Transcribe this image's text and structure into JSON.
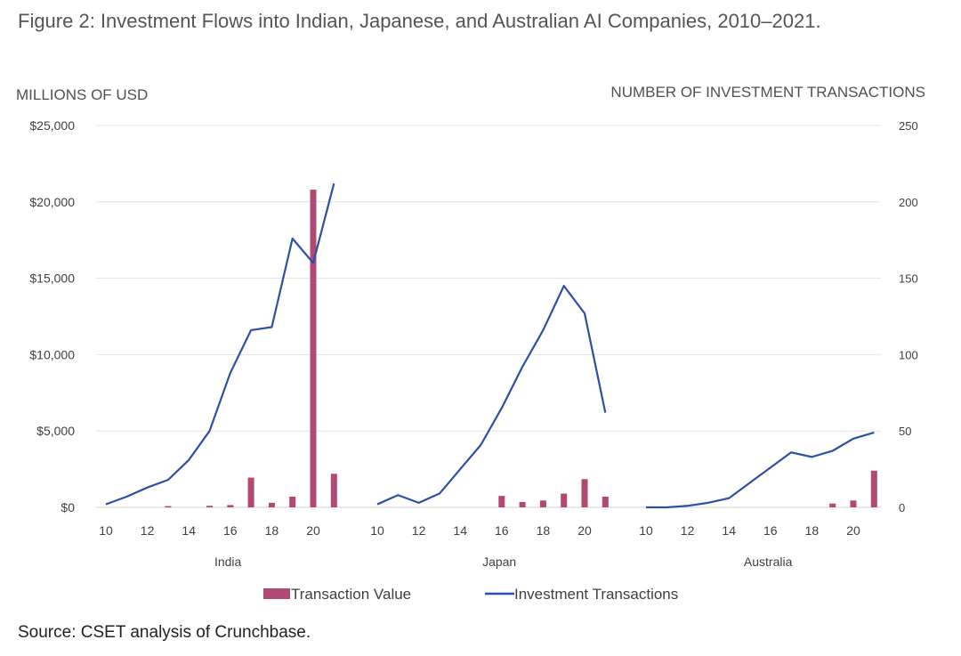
{
  "figure": {
    "title": "Figure 2: Investment Flows into Indian, Japanese, and Australian AI Companies, 2010–2021.",
    "source": "Source: CSET analysis of Crunchbase."
  },
  "chart_data": {
    "type": "bar+line",
    "left_axis_title": "MILLIONS OF USD",
    "right_axis_title": "NUMBER OF INVESTMENT TRANSACTIONS",
    "left_ticks": [
      "$0",
      "$5,000",
      "$10,000",
      "$15,000",
      "$20,000",
      "$25,000"
    ],
    "right_ticks": [
      "0",
      "50",
      "100",
      "150",
      "200",
      "250"
    ],
    "ylim_left": [
      0,
      25000
    ],
    "ylim_right": [
      0,
      250
    ],
    "x_tick_labels": [
      "10",
      "12",
      "14",
      "16",
      "18",
      "20"
    ],
    "years": [
      2010,
      2011,
      2012,
      2013,
      2014,
      2015,
      2016,
      2017,
      2018,
      2019,
      2020,
      2021
    ],
    "groups": [
      {
        "name": "India",
        "transaction_value": [
          0,
          0,
          0,
          80,
          0,
          100,
          150,
          1950,
          300,
          700,
          20800,
          2200
        ],
        "investment_transactions": [
          2,
          7,
          13,
          18,
          31,
          50,
          88,
          116,
          118,
          176,
          160,
          212
        ]
      },
      {
        "name": "Japan",
        "transaction_value": [
          0,
          0,
          0,
          0,
          0,
          0,
          750,
          350,
          450,
          900,
          1850,
          700
        ],
        "investment_transactions": [
          2,
          8,
          3,
          9,
          25,
          41,
          65,
          92,
          116,
          145,
          127,
          62
        ]
      },
      {
        "name": "Australia",
        "transaction_value": [
          0,
          0,
          0,
          0,
          0,
          0,
          0,
          0,
          0,
          250,
          450,
          2400
        ],
        "investment_transactions": [
          0,
          0,
          1,
          3,
          6,
          16,
          26,
          36,
          33,
          37,
          45,
          49
        ]
      }
    ],
    "series": [
      {
        "name": "Transaction Value",
        "kind": "bar",
        "color": "#b04a74"
      },
      {
        "name": "Investment Transactions",
        "kind": "line",
        "color": "#2e4fa8"
      }
    ],
    "legend_position": "bottom-center"
  }
}
